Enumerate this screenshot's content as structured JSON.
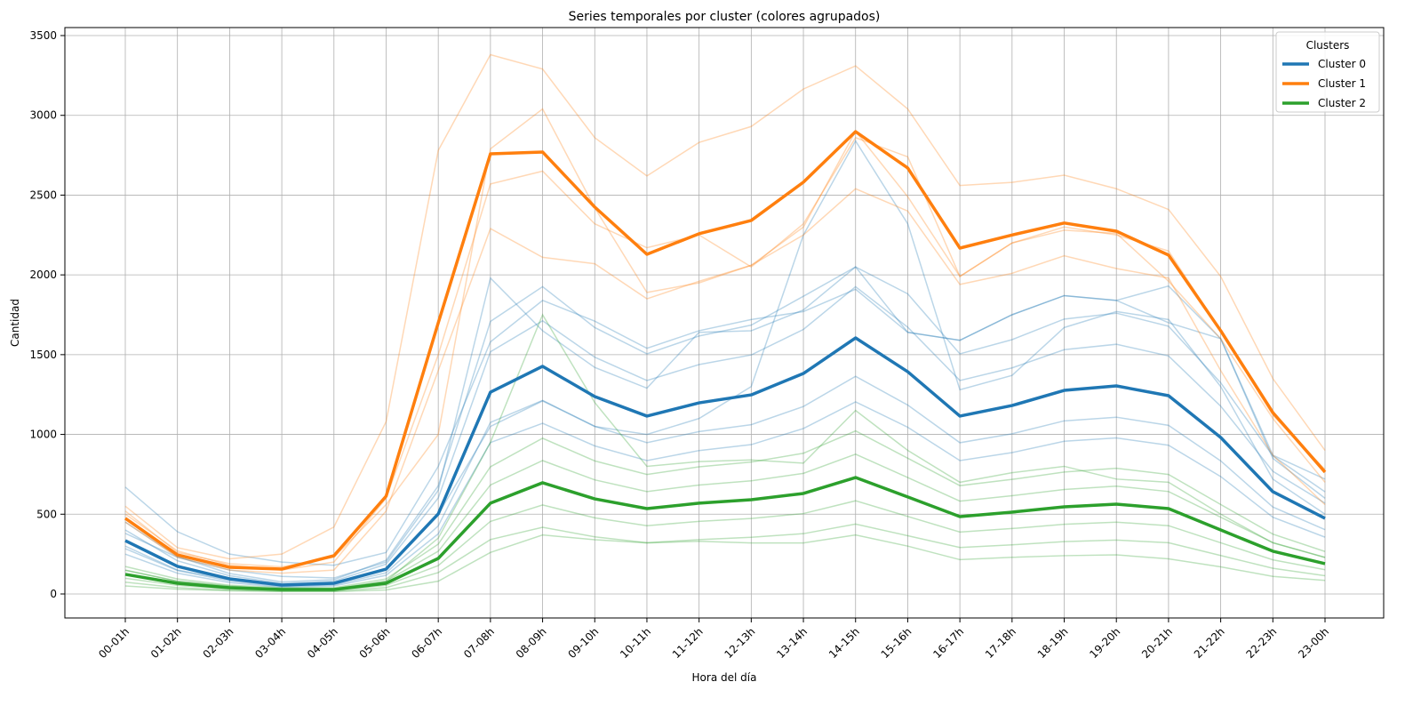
{
  "chart_data": {
    "type": "line",
    "title": "Series temporales por cluster (colores agrupados)",
    "xlabel": "Hora del día",
    "ylabel": "Cantidad",
    "ylim": [
      -150,
      3550
    ],
    "yticks": [
      0,
      500,
      1000,
      1500,
      2000,
      2500,
      3000,
      3500
    ],
    "grid": true,
    "legend": {
      "title": "Clusters",
      "placement": "top-right"
    },
    "categories": [
      "00-01h",
      "01-02h",
      "02-03h",
      "03-04h",
      "04-05h",
      "05-06h",
      "06-07h",
      "07-08h",
      "08-09h",
      "09-10h",
      "10-11h",
      "11-12h",
      "12-13h",
      "13-14h",
      "14-15h",
      "15-16h",
      "16-17h",
      "17-18h",
      "18-19h",
      "19-20h",
      "20-21h",
      "21-22h",
      "22-23h",
      "23-00h"
    ],
    "series": [
      {
        "name": "Cluster 0",
        "color": "#1f77b4",
        "values": [
          334,
          173,
          95,
          56,
          67,
          156,
          502,
          1265,
          1427,
          1237,
          1115,
          1198,
          1248,
          1382,
          1605,
          1393,
          1115,
          1181,
          1276,
          1304,
          1243,
          981,
          641,
          474
        ]
      },
      {
        "name": "Cluster 1",
        "color": "#ff7f0e",
        "values": [
          474,
          245,
          167,
          156,
          240,
          613,
          1700,
          2759,
          2770,
          2425,
          2129,
          2258,
          2341,
          2581,
          2898,
          2670,
          2168,
          2250,
          2325,
          2274,
          2124,
          1650,
          1137,
          764
        ]
      },
      {
        "name": "Cluster 2",
        "color": "#2ca02c",
        "values": [
          123,
          67,
          39,
          28,
          28,
          67,
          223,
          569,
          697,
          596,
          535,
          569,
          591,
          630,
          730,
          608,
          485,
          513,
          546,
          563,
          535,
          401,
          268,
          190
        ]
      }
    ],
    "members": [
      {
        "cluster": 0,
        "values": [
          250,
          130,
          71,
          42,
          50,
          117,
          377,
          949,
          1070,
          928,
          836,
          899,
          936,
          1037,
          1204,
          1045,
          836,
          886,
          957,
          978,
          932,
          736,
          481,
          356
        ]
      },
      {
        "cluster": 0,
        "values": [
          284,
          147,
          81,
          48,
          57,
          133,
          427,
          1075,
          1213,
          1051,
          948,
          1018,
          1061,
          1175,
          1364,
          1184,
          948,
          1004,
          1085,
          1108,
          1057,
          834,
          545,
          403
        ]
      },
      {
        "cluster": 0,
        "values": [
          401,
          208,
          114,
          67,
          80,
          187,
          602,
          1518,
          1712,
          1484,
          1338,
          1438,
          1498,
          1658,
          1926,
          1672,
          1338,
          1417,
          1531,
          1565,
          1492,
          1177,
          769,
          569
        ]
      },
      {
        "cluster": 0,
        "values": [
          451,
          234,
          128,
          76,
          90,
          211,
          678,
          1708,
          1926,
          1670,
          1505,
          1617,
          1685,
          1866,
          2050,
          1881,
          1505,
          1594,
          1723,
          1760,
          1678,
          1324,
          865,
          640
        ]
      },
      {
        "cluster": 0,
        "values": [
          380,
          230,
          150,
          110,
          100,
          200,
          650,
          1980,
          1650,
          1420,
          1290,
          1640,
          1650,
          1780,
          2050,
          1640,
          1590,
          1750,
          1870,
          1840,
          1930,
          1600,
          850,
          600
        ]
      },
      {
        "cluster": 0,
        "values": [
          300,
          150,
          90,
          60,
          70,
          150,
          500,
          1050,
          1210,
          1050,
          1000,
          1100,
          1300,
          2250,
          2840,
          2320,
          1280,
          1370,
          1670,
          1770,
          1720,
          1300,
          720,
          500
        ]
      },
      {
        "cluster": 0,
        "values": [
          670,
          390,
          250,
          200,
          180,
          260,
          800,
          1580,
          1840,
          1710,
          1540,
          1650,
          1720,
          1770,
          1910,
          1640,
          1590,
          1750,
          1870,
          1840,
          1700,
          1600,
          870,
          720
        ]
      },
      {
        "cluster": 1,
        "values": [
          550,
          290,
          220,
          250,
          420,
          1080,
          2780,
          3380,
          3290,
          2860,
          2620,
          2830,
          2930,
          3165,
          3310,
          3040,
          2560,
          2580,
          2625,
          2540,
          2410,
          1990,
          1350,
          900
        ]
      },
      {
        "cluster": 1,
        "values": [
          500,
          270,
          180,
          150,
          200,
          600,
          1500,
          2570,
          2650,
          2320,
          2170,
          2250,
          2050,
          2320,
          2860,
          2740,
          1990,
          2200,
          2300,
          2250,
          2150,
          1650,
          1120,
          780
        ]
      },
      {
        "cluster": 1,
        "values": [
          450,
          230,
          150,
          130,
          150,
          520,
          1400,
          2290,
          2110,
          2070,
          1850,
          1960,
          2060,
          2250,
          2540,
          2400,
          1940,
          2010,
          2120,
          2040,
          1980,
          1400,
          870,
          560
        ]
      },
      {
        "cluster": 1,
        "values": [
          520,
          260,
          190,
          170,
          230,
          560,
          1000,
          2790,
          3040,
          2420,
          1890,
          1950,
          2060,
          2300,
          2900,
          2490,
          1990,
          2200,
          2280,
          2260,
          1960,
          1600,
          1100,
          700
        ]
      },
      {
        "cluster": 2,
        "values": [
          74,
          40,
          23,
          17,
          17,
          40,
          134,
          341,
          418,
          358,
          321,
          341,
          355,
          378,
          438,
          365,
          291,
          308,
          328,
          338,
          321,
          241,
          161,
          114
        ]
      },
      {
        "cluster": 2,
        "values": [
          98,
          54,
          31,
          22,
          22,
          54,
          178,
          455,
          558,
          477,
          428,
          455,
          473,
          504,
          584,
          486,
          388,
          410,
          437,
          450,
          428,
          321,
          214,
          152
        ]
      },
      {
        "cluster": 2,
        "values": [
          148,
          80,
          47,
          34,
          34,
          80,
          268,
          683,
          836,
          715,
          642,
          683,
          709,
          756,
          876,
          730,
          582,
          616,
          655,
          676,
          642,
          481,
          322,
          228
        ]
      },
      {
        "cluster": 2,
        "values": [
          172,
          94,
          55,
          39,
          39,
          94,
          312,
          797,
          976,
          834,
          749,
          797,
          827,
          882,
          1022,
          851,
          679,
          718,
          764,
          788,
          749,
          561,
          375,
          266
        ]
      },
      {
        "cluster": 2,
        "values": [
          150,
          80,
          50,
          30,
          30,
          80,
          350,
          950,
          1750,
          1200,
          800,
          830,
          840,
          820,
          1150,
          900,
          700,
          760,
          800,
          720,
          700,
          500,
          320,
          230
        ]
      },
      {
        "cluster": 2,
        "values": [
          50,
          30,
          20,
          15,
          15,
          25,
          80,
          260,
          370,
          340,
          320,
          330,
          320,
          320,
          370,
          300,
          215,
          230,
          240,
          245,
          220,
          170,
          110,
          85
        ]
      }
    ]
  }
}
